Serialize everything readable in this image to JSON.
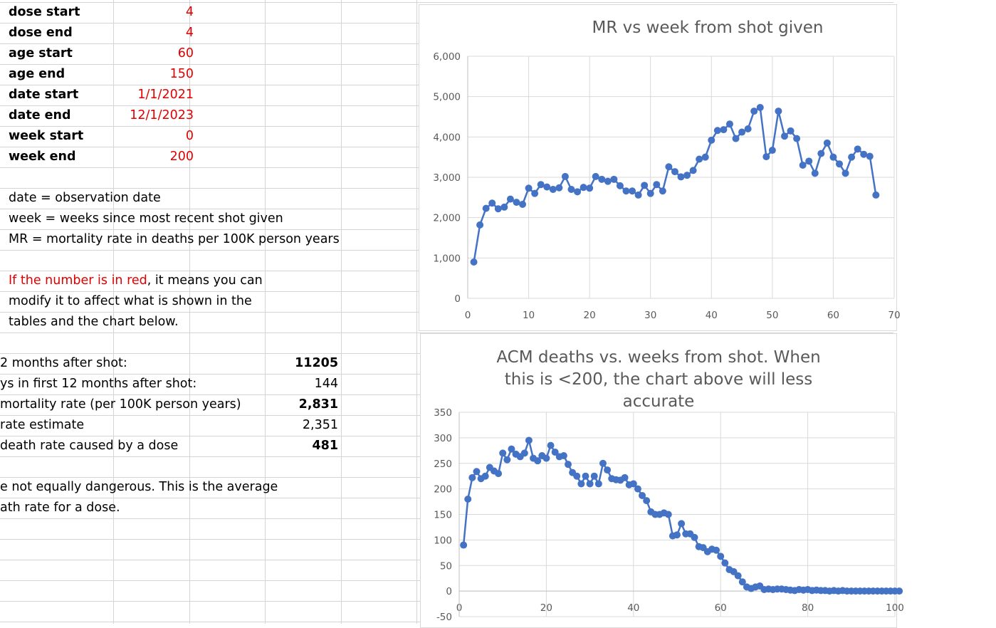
{
  "params": [
    {
      "label": "dose start",
      "value": "4"
    },
    {
      "label": "dose end",
      "value": "4"
    },
    {
      "label": "age start",
      "value": "60"
    },
    {
      "label": "age end",
      "value": "150"
    },
    {
      "label": "date start",
      "value": "1/1/2021"
    },
    {
      "label": "date end",
      "value": "12/1/2023"
    },
    {
      "label": "week start",
      "value": "0"
    },
    {
      "label": "week end",
      "value": "200"
    }
  ],
  "notes": {
    "date_def": "date = observation date",
    "week_def": "week = weeks since most recent shot given",
    "mr_def": "MR = mortality rate in deaths per 100K person years",
    "red_lead": "If the number is in red",
    "red_rest": ", it means you can",
    "line2": "modify it to affect what is shown in the",
    "line3": "tables and the chart below."
  },
  "summary": [
    {
      "label": "2 months after shot:",
      "value": "11205",
      "bold": true
    },
    {
      "label": "ys in first 12 months after shot:",
      "value": "144",
      "bold": false
    },
    {
      "label": "mortality rate (per 100K person years)",
      "value": "2,831",
      "bold": true
    },
    {
      "label": "rate estimate",
      "value": "2,351",
      "bold": false
    },
    {
      "label": " death rate  caused by a dose",
      "value": "481",
      "bold": true
    }
  ],
  "footer": {
    "line1": "e not equally dangerous. This is the average",
    "line2": "ath rate for a dose."
  },
  "colors": {
    "series": "#4472c4",
    "param_value": "#e00000",
    "grid": "#d9d9d9",
    "axis_text": "#595959"
  },
  "chart_data": [
    {
      "type": "line",
      "title": "MR vs week from shot given",
      "xlim": [
        0,
        70
      ],
      "ylim": [
        0,
        6000
      ],
      "xticks": [
        0,
        10,
        20,
        30,
        40,
        50,
        60,
        70
      ],
      "yticks": [
        0,
        1000,
        2000,
        3000,
        4000,
        5000,
        6000
      ],
      "ytick_labels": [
        "0",
        "1,000",
        "2,000",
        "3,000",
        "4,000",
        "5,000",
        "6,000"
      ],
      "grid": true,
      "x": [
        1,
        2,
        3,
        4,
        5,
        6,
        7,
        8,
        9,
        10,
        11,
        12,
        13,
        14,
        15,
        16,
        17,
        18,
        19,
        20,
        21,
        22,
        23,
        24,
        25,
        26,
        27,
        28,
        29,
        30,
        31,
        32,
        33,
        34,
        35,
        36,
        37,
        38,
        39,
        40,
        41,
        42,
        43,
        44,
        45,
        46,
        47,
        48,
        49,
        50,
        51,
        52,
        53,
        54,
        55,
        56,
        57,
        58,
        59,
        60,
        61,
        62,
        63,
        64,
        65,
        66,
        67
      ],
      "y": [
        900,
        1820,
        2230,
        2360,
        2220,
        2260,
        2460,
        2380,
        2330,
        2730,
        2600,
        2820,
        2760,
        2700,
        2740,
        3020,
        2700,
        2640,
        2750,
        2730,
        3020,
        2950,
        2900,
        2950,
        2790,
        2660,
        2660,
        2560,
        2800,
        2600,
        2820,
        2660,
        3260,
        3140,
        3010,
        3050,
        3170,
        3450,
        3500,
        3920,
        4160,
        4180,
        4320,
        3960,
        4120,
        4200,
        4640,
        4730,
        3510,
        3670,
        4640,
        4020,
        4150,
        3960,
        3300,
        3400,
        3100,
        3590,
        3850,
        3500,
        3330,
        3100,
        3500,
        3700,
        3570,
        3520,
        2560
      ]
    },
    {
      "type": "line",
      "title": "ACM deaths vs. weeks from shot. When this is <200, the chart above will less accurate",
      "xlim": [
        0,
        100
      ],
      "ylim": [
        -50,
        350
      ],
      "xticks": [
        0,
        20,
        40,
        60,
        80,
        100
      ],
      "yticks": [
        -50,
        0,
        50,
        100,
        150,
        200,
        250,
        300,
        350
      ],
      "ytick_labels": [
        "-50",
        "0",
        "50",
        "100",
        "150",
        "200",
        "250",
        "300",
        "350"
      ],
      "grid": true,
      "x": [
        1,
        2,
        3,
        4,
        5,
        6,
        7,
        8,
        9,
        10,
        11,
        12,
        13,
        14,
        15,
        16,
        17,
        18,
        19,
        20,
        21,
        22,
        23,
        24,
        25,
        26,
        27,
        28,
        29,
        30,
        31,
        32,
        33,
        34,
        35,
        36,
        37,
        38,
        39,
        40,
        41,
        42,
        43,
        44,
        45,
        46,
        47,
        48,
        49,
        50,
        51,
        52,
        53,
        54,
        55,
        56,
        57,
        58,
        59,
        60,
        61,
        62,
        63,
        64,
        65,
        66,
        67,
        68,
        69,
        70,
        71,
        72,
        73,
        74,
        75,
        76,
        77,
        78,
        79,
        80,
        81,
        82,
        83,
        84,
        85,
        86,
        87,
        88,
        89,
        90,
        91,
        92,
        93,
        94,
        95,
        96,
        97,
        98,
        99,
        100,
        101
      ],
      "y": [
        90,
        180,
        222,
        234,
        220,
        225,
        242,
        235,
        230,
        270,
        257,
        278,
        268,
        263,
        270,
        295,
        260,
        255,
        265,
        260,
        285,
        272,
        263,
        265,
        248,
        232,
        225,
        210,
        225,
        210,
        225,
        210,
        250,
        237,
        220,
        218,
        217,
        222,
        208,
        210,
        200,
        187,
        177,
        155,
        150,
        150,
        153,
        150,
        108,
        110,
        132,
        112,
        112,
        105,
        87,
        85,
        77,
        82,
        80,
        68,
        55,
        42,
        38,
        30,
        18,
        8,
        5,
        8,
        10,
        3,
        4,
        3,
        4,
        4,
        3,
        2,
        1,
        3,
        2,
        3,
        1,
        2,
        1,
        1,
        0,
        1,
        0,
        1,
        0,
        0,
        0,
        0,
        0,
        0,
        0,
        0,
        0,
        0,
        0,
        0,
        0
      ]
    }
  ]
}
